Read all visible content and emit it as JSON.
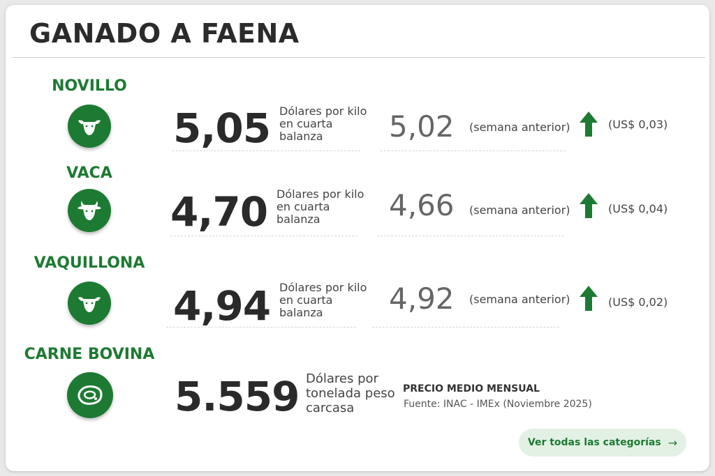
{
  "title": "GANADO A FAENA",
  "categories": [
    {
      "label": "NOVILLO",
      "icon": "steer-head-icon",
      "price": "5,05",
      "unit": "Dólares por kilo en cuarta balanza",
      "previous": "5,02",
      "previous_label": "(semana anterior)",
      "trend": "up",
      "delta": "(US$ 0,03)"
    },
    {
      "label": "VACA",
      "icon": "cow-head-icon",
      "price": "4,70",
      "unit": "Dólares por kilo en cuarta balanza",
      "previous": "4,66",
      "previous_label": "(semana anterior)",
      "trend": "up",
      "delta": "(US$ 0,04)"
    },
    {
      "label": "VAQUILLONA",
      "icon": "heifer-head-icon",
      "price": "4,94",
      "unit": "Dólares por kilo en cuarta balanza",
      "previous": "4,92",
      "previous_label": "(semana anterior)",
      "trend": "up",
      "delta": "(US$ 0,02)"
    },
    {
      "label": "CARNE BOVINA",
      "icon": "beef-cut-icon",
      "price": "5.559",
      "unit": "Dólares por tonelada peso carcasa"
    }
  ],
  "monthly": {
    "title": "PRECIO MEDIO MENSUAL",
    "source": "Fuente: INAC - IMEx (Noviembre 2025)"
  },
  "cta": {
    "label": "Ver todas las categorías",
    "arrow": "→"
  },
  "colors": {
    "accent": "#1d7a32",
    "cta_bg": "#e3f1e5"
  }
}
